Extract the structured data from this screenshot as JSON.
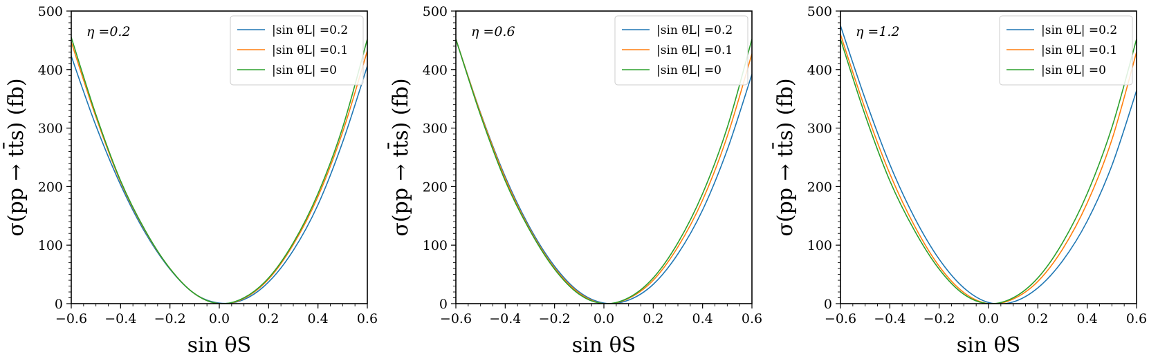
{
  "chart_data": [
    {
      "type": "line",
      "annotation": "η =0.2",
      "xlabel": "sin θS",
      "ylabel": "σ(pp → tt̄s) (fb)",
      "xlim": [
        -0.6,
        0.6
      ],
      "ylim": [
        0,
        500
      ],
      "x_ticks": [
        "−0.6",
        "−0.4",
        "−0.2",
        "0.0",
        "0.2",
        "0.4",
        "0.6"
      ],
      "y_ticks": [
        "0",
        "100",
        "200",
        "300",
        "400",
        "500"
      ],
      "legend_position": "top-right",
      "series": [
        {
          "name": "|sin θL| =0.2",
          "color": "#1f77b4",
          "x": [
            -0.6,
            -0.5,
            -0.4,
            -0.3,
            -0.2,
            -0.1,
            0.0,
            0.1,
            0.2,
            0.3,
            0.4,
            0.5,
            0.6
          ],
          "y": [
            423,
            304,
            203,
            121,
            59,
            17,
            1,
            7,
            37,
            91,
            169,
            276,
            406
          ]
        },
        {
          "name": "|sin θL| =0.1",
          "color": "#ff7f0e",
          "x": [
            -0.6,
            -0.5,
            -0.4,
            -0.3,
            -0.2,
            -0.1,
            0.0,
            0.1,
            0.2,
            0.3,
            0.4,
            0.5,
            0.6
          ],
          "y": [
            447,
            319,
            208,
            124,
            60,
            17,
            0,
            9,
            42,
            101,
            183,
            293,
            432
          ]
        },
        {
          "name": "|sin θL| =0",
          "color": "#2ca02c",
          "x": [
            -0.6,
            -0.5,
            -0.4,
            -0.3,
            -0.2,
            -0.1,
            0.0,
            0.1,
            0.2,
            0.3,
            0.4,
            0.5,
            0.6
          ],
          "y": [
            455,
            323,
            210,
            125,
            60,
            17,
            0,
            10,
            44,
            104,
            188,
            301,
            452
          ]
        }
      ]
    },
    {
      "type": "line",
      "annotation": "η =0.6",
      "xlabel": "sin θS",
      "ylabel": "σ(pp → tt̄s) (fb)",
      "xlim": [
        -0.6,
        0.6
      ],
      "ylim": [
        0,
        500
      ],
      "x_ticks": [
        "−0.6",
        "−0.4",
        "−0.2",
        "0.0",
        "0.2",
        "0.4",
        "0.6"
      ],
      "y_ticks": [
        "0",
        "100",
        "200",
        "300",
        "400",
        "500"
      ],
      "legend_position": "top-right",
      "series": [
        {
          "name": "|sin θL| =0.2",
          "color": "#1f77b4",
          "x": [
            -0.6,
            -0.5,
            -0.4,
            -0.3,
            -0.2,
            -0.1,
            0.0,
            0.1,
            0.2,
            0.3,
            0.4,
            0.5,
            0.6
          ],
          "y": [
            452,
            326,
            217,
            130,
            64,
            20,
            1,
            6,
            33,
            85,
            160,
            263,
            392
          ]
        },
        {
          "name": "|sin θL| =0.1",
          "color": "#ff7f0e",
          "x": [
            -0.6,
            -0.5,
            -0.4,
            -0.3,
            -0.2,
            -0.1,
            0.0,
            0.1,
            0.2,
            0.3,
            0.4,
            0.5,
            0.6
          ],
          "y": [
            452,
            325,
            214,
            127,
            61,
            18,
            0,
            9,
            40,
            97,
            177,
            286,
            427
          ]
        },
        {
          "name": "|sin θL| =0",
          "color": "#2ca02c",
          "x": [
            -0.6,
            -0.5,
            -0.4,
            -0.3,
            -0.2,
            -0.1,
            0.0,
            0.1,
            0.2,
            0.3,
            0.4,
            0.5,
            0.6
          ],
          "y": [
            452,
            322,
            210,
            125,
            59,
            16,
            0,
            10,
            44,
            104,
            188,
            301,
            452
          ]
        }
      ]
    },
    {
      "type": "line",
      "annotation": "η =1.2",
      "xlabel": "sin θS",
      "ylabel": "σ(pp → tt̄s) (fb)",
      "xlim": [
        -0.6,
        0.6
      ],
      "ylim": [
        0,
        500
      ],
      "x_ticks": [
        "−0.6",
        "−0.4",
        "−0.2",
        "0.0",
        "0.2",
        "0.4",
        "0.6"
      ],
      "y_ticks": [
        "0",
        "100",
        "200",
        "300",
        "400",
        "500"
      ],
      "legend_position": "top-right",
      "series": [
        {
          "name": "|sin θL| =0.2",
          "color": "#1f77b4",
          "x": [
            -0.6,
            -0.5,
            -0.4,
            -0.3,
            -0.2,
            -0.1,
            0.0,
            0.1,
            0.2,
            0.3,
            0.4,
            0.5,
            0.6
          ],
          "y": [
            475,
            350,
            238,
            147,
            76,
            27,
            2,
            3,
            27,
            73,
            141,
            236,
            364
          ]
        },
        {
          "name": "|sin θL| =0.1",
          "color": "#ff7f0e",
          "x": [
            -0.6,
            -0.5,
            -0.4,
            -0.3,
            -0.2,
            -0.1,
            0.0,
            0.1,
            0.2,
            0.3,
            0.4,
            0.5,
            0.6
          ],
          "y": [
            460,
            333,
            222,
            133,
            64,
            19,
            0,
            8,
            38,
            93,
            172,
            280,
            430
          ]
        },
        {
          "name": "|sin θL| =0",
          "color": "#2ca02c",
          "x": [
            -0.6,
            -0.5,
            -0.4,
            -0.3,
            -0.2,
            -0.1,
            0.0,
            0.1,
            0.2,
            0.3,
            0.4,
            0.5,
            0.6
          ],
          "y": [
            452,
            322,
            210,
            125,
            59,
            16,
            0,
            10,
            44,
            104,
            188,
            301,
            452
          ]
        }
      ]
    }
  ]
}
